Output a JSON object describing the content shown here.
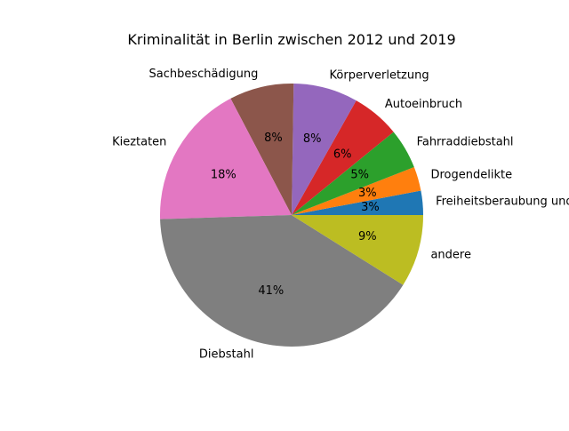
{
  "chart_data": {
    "type": "pie",
    "title": "Kriminalität in Berlin zwischen 2012 und 2019",
    "slices": [
      {
        "label": "Freiheitsberaubung und Nötigung",
        "value": 3,
        "pct_text": "3%",
        "color": "#1f77b4"
      },
      {
        "label": "Drogendelikte",
        "value": 3,
        "pct_text": "3%",
        "color": "#ff7f0e"
      },
      {
        "label": "Fahrraddiebstahl",
        "value": 5,
        "pct_text": "5%",
        "color": "#2ca02c"
      },
      {
        "label": "Autoeinbruch",
        "value": 6,
        "pct_text": "6%",
        "color": "#d62728"
      },
      {
        "label": "Körperverletzung",
        "value": 8,
        "pct_text": "8%",
        "color": "#9467bd"
      },
      {
        "label": "Sachbeschädigung",
        "value": 8,
        "pct_text": "8%",
        "color": "#8c564b"
      },
      {
        "label": "Kieztaten",
        "value": 18,
        "pct_text": "18%",
        "color": "#e377c2"
      },
      {
        "label": "Diebstahl",
        "value": 41,
        "pct_text": "41%",
        "color": "#7f7f7f"
      },
      {
        "label": "andere",
        "value": 9,
        "pct_text": "9%",
        "color": "#bcbd22"
      }
    ],
    "start_angle_deg": 0,
    "direction": "counterclockwise",
    "legend": "none"
  }
}
